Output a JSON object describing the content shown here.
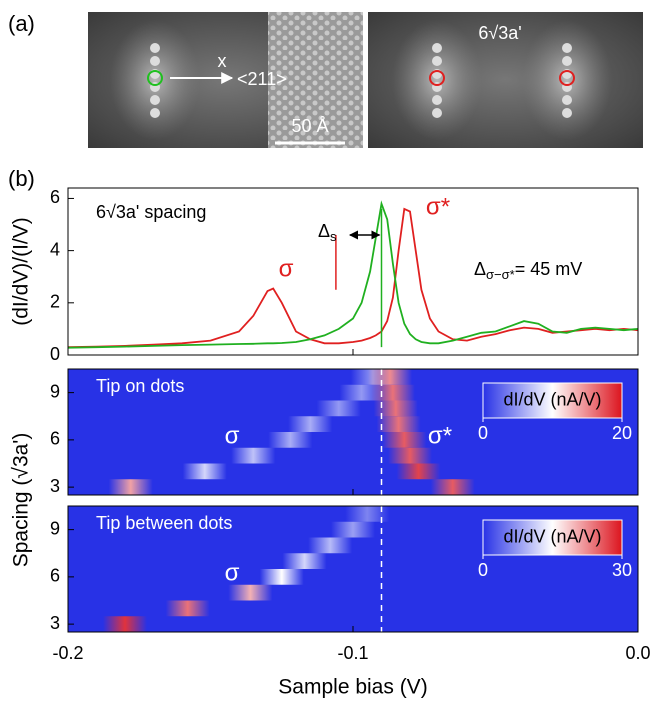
{
  "figure": {
    "panel_a": "(a)",
    "panel_b": "(b)",
    "image_left": {
      "axis_label": "x",
      "direction": "<211>",
      "scale_bar": "50 Å"
    },
    "image_right": {
      "label": "6√3a'"
    }
  },
  "chart_data": [
    {
      "type": "line",
      "ylabel": "(dI/dV)/(I/V)",
      "annotations": [
        "6√3a' spacing",
        "σ",
        "σ*"
      ],
      "delta_s": {
        "symbol": "Δ",
        "subscript": "s"
      },
      "splitting": {
        "symbol": "Δ",
        "subscript": "σ−σ*",
        "text": "= 45 mV"
      },
      "guides": [
        -0.106,
        -0.09
      ],
      "x": [
        -0.2,
        -0.19,
        -0.18,
        -0.17,
        -0.16,
        -0.15,
        -0.14,
        -0.135,
        -0.13,
        -0.128,
        -0.125,
        -0.12,
        -0.115,
        -0.11,
        -0.105,
        -0.1,
        -0.097,
        -0.094,
        -0.092,
        -0.09,
        -0.088,
        -0.086,
        -0.084,
        -0.082,
        -0.08,
        -0.078,
        -0.076,
        -0.073,
        -0.07,
        -0.065,
        -0.06,
        -0.055,
        -0.05,
        -0.045,
        -0.04,
        -0.035,
        -0.03,
        -0.025,
        -0.02,
        -0.015,
        -0.01,
        -0.005,
        0
      ],
      "series": [
        {
          "color": "#e02020",
          "values": [
            0.3,
            0.32,
            0.35,
            0.4,
            0.45,
            0.55,
            0.9,
            1.5,
            2.45,
            2.55,
            2.0,
            0.9,
            0.6,
            0.45,
            0.45,
            0.5,
            0.55,
            0.65,
            0.75,
            0.9,
            1.3,
            2.2,
            4.0,
            5.6,
            5.5,
            4.0,
            2.5,
            1.4,
            0.9,
            0.6,
            0.55,
            0.7,
            0.8,
            0.95,
            1.05,
            1.0,
            0.85,
            0.9,
            0.95,
            1.0,
            0.95,
            1.0,
            0.95
          ]
        },
        {
          "color": "#20b020",
          "values": [
            0.28,
            0.3,
            0.32,
            0.35,
            0.38,
            0.4,
            0.42,
            0.43,
            0.45,
            0.45,
            0.46,
            0.5,
            0.6,
            0.75,
            1.0,
            1.4,
            2.0,
            3.2,
            4.5,
            5.8,
            5.2,
            3.5,
            2.0,
            1.2,
            0.8,
            0.6,
            0.5,
            0.45,
            0.45,
            0.55,
            0.7,
            0.85,
            0.9,
            1.1,
            1.3,
            1.2,
            0.9,
            0.85,
            1.0,
            1.05,
            1.0,
            0.95,
            1.0
          ]
        }
      ],
      "xlim": [
        -0.2,
        0
      ],
      "xticks": [
        -0.2,
        -0.1,
        {
          "value": 0,
          "label": "0.0"
        }
      ],
      "ylim": [
        0,
        6.4
      ],
      "yticks": [
        0,
        2,
        4,
        6
      ]
    },
    {
      "type": "heatmap",
      "title": "Tip on dots",
      "ylabel": "Spacing (√3a')",
      "colorbar": {
        "label": "dI/dV (nA/V)",
        "lim": [
          0,
          20
        ],
        "ticks": [
          0,
          20
        ]
      },
      "annotations": [
        "σ",
        "σ*"
      ],
      "guide": -0.09,
      "rows": [
        {
          "y": 3,
          "peaks": [
            {
              "x": -0.178,
              "value": 14
            },
            {
              "x": -0.065,
              "value": 17
            }
          ]
        },
        {
          "y": 4,
          "peaks": [
            {
              "x": -0.152,
              "value": 8
            },
            {
              "x": -0.077,
              "value": 18
            }
          ]
        },
        {
          "y": 5,
          "peaks": [
            {
              "x": -0.135,
              "value": 7
            },
            {
              "x": -0.08,
              "value": 17
            }
          ]
        },
        {
          "y": 6,
          "peaks": [
            {
              "x": -0.122,
              "value": 6
            },
            {
              "x": -0.082,
              "value": 17
            }
          ]
        },
        {
          "y": 7,
          "peaks": [
            {
              "x": -0.115,
              "value": 6
            },
            {
              "x": -0.084,
              "value": 16
            }
          ]
        },
        {
          "y": 8,
          "peaks": [
            {
              "x": -0.105,
              "value": 5
            },
            {
              "x": -0.085,
              "value": 16
            }
          ]
        },
        {
          "y": 9,
          "peaks": [
            {
              "x": -0.097,
              "value": 5
            },
            {
              "x": -0.086,
              "value": 16
            }
          ]
        },
        {
          "y": 10,
          "peaks": [
            {
              "x": -0.093,
              "value": 5
            },
            {
              "x": -0.087,
              "value": 15
            }
          ]
        }
      ],
      "xlim": [
        -0.2,
        0
      ],
      "xticks": [
        -0.2,
        -0.1,
        {
          "value": 0,
          "label": "0.0"
        }
      ],
      "ylim": [
        2.5,
        10.5
      ],
      "yticks": [
        3,
        6,
        9
      ]
    },
    {
      "type": "heatmap",
      "title": "Tip between dots",
      "xlabel": "Sample bias (V)",
      "colorbar": {
        "label": "dI/dV (nA/V)",
        "lim": [
          0,
          30
        ],
        "ticks": [
          0,
          30
        ]
      },
      "annotations": [
        "σ"
      ],
      "guide": -0.09,
      "rows": [
        {
          "y": 3,
          "peaks": [
            {
              "x": -0.18,
              "value": 28
            }
          ]
        },
        {
          "y": 4,
          "peaks": [
            {
              "x": -0.158,
              "value": 24
            }
          ]
        },
        {
          "y": 5,
          "peaks": [
            {
              "x": -0.136,
              "value": 20
            }
          ]
        },
        {
          "y": 6,
          "peaks": [
            {
              "x": -0.125,
              "value": 15
            }
          ]
        },
        {
          "y": 7,
          "peaks": [
            {
              "x": -0.117,
              "value": 12
            }
          ]
        },
        {
          "y": 8,
          "peaks": [
            {
              "x": -0.108,
              "value": 10
            }
          ]
        },
        {
          "y": 9,
          "peaks": [
            {
              "x": -0.1,
              "value": 8
            }
          ]
        },
        {
          "y": 10,
          "peaks": [
            {
              "x": -0.095,
              "value": 6
            }
          ]
        }
      ],
      "xlim": [
        -0.2,
        0
      ],
      "xticks": [
        -0.2,
        -0.1,
        {
          "value": 0,
          "label": "0.0"
        }
      ],
      "ylim": [
        2.5,
        10.5
      ],
      "yticks": [
        3,
        6,
        9
      ]
    }
  ]
}
